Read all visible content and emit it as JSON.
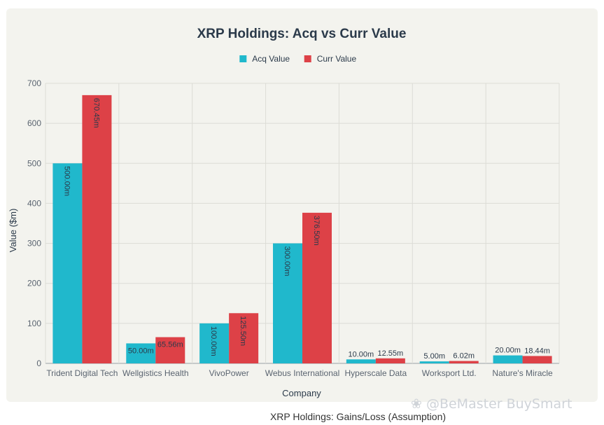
{
  "chart_data": {
    "type": "bar",
    "title": "XRP Holdings: Acq vs Curr Value",
    "xlabel": "Company",
    "ylabel": "Value ($m)",
    "ylim": [
      0,
      700
    ],
    "yticks": [
      0,
      100,
      200,
      300,
      400,
      500,
      600,
      700
    ],
    "grid": true,
    "legend_position": "top-center",
    "categories": [
      "Trident Digital Tech",
      "Wellgistics Health",
      "VivoPower",
      "Webus International",
      "Hyperscale Data",
      "Worksport Ltd.",
      "Nature's Miracle"
    ],
    "series": [
      {
        "name": "Acq Value",
        "color": "#20b8cc",
        "values": [
          500.0,
          50.0,
          100.0,
          300.0,
          10.0,
          5.0,
          20.0
        ],
        "labels": [
          "500.00m",
          "50.00m",
          "100.00m",
          "300.00m",
          "10.00m",
          "5.00m",
          "20.00m"
        ]
      },
      {
        "name": "Curr Value",
        "color": "#dd4147",
        "values": [
          670.45,
          65.56,
          125.5,
          376.5,
          12.55,
          6.02,
          18.44
        ],
        "labels": [
          "670.45m",
          "65.56m",
          "125.50m",
          "376.50m",
          "12.55m",
          "6.02m",
          "18.44m"
        ]
      }
    ]
  },
  "watermark": "❀ @BeMaster BuySmart",
  "caption": "XRP Holdings: Gains/Loss (Assumption)"
}
